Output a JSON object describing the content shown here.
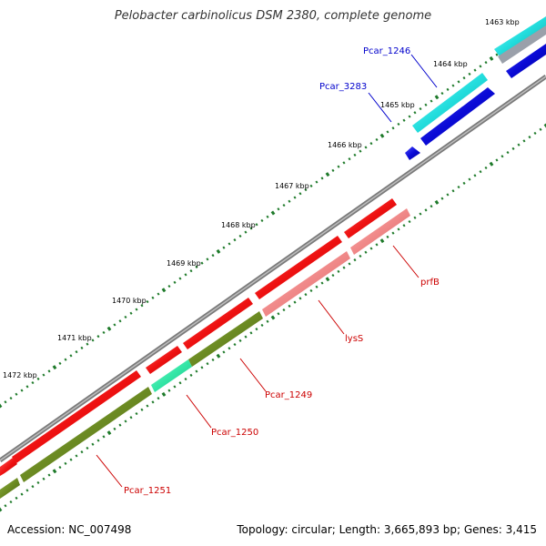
{
  "title": "Pelobacter carbinolicus DSM 2380, complete genome",
  "footer": {
    "accession": "Accession: NC_007498",
    "summary": "Topology: circular; Length: 3,665,893 bp; Genes: 3,415"
  },
  "colors": {
    "backbone": "#7a7a7a",
    "forward_red": "#ee1111",
    "reverse_pink": "#f08888",
    "reverse_olive": "#6b8a22",
    "reverse_teal": "#33e6a6",
    "cyan": "#22dddd",
    "blue": "#0a0ad6",
    "tick_green": "#1e7a2a",
    "label_red": "#cc0000",
    "label_blue": "#0000cc"
  },
  "ticks": [
    {
      "label": "1463 kbp"
    },
    {
      "label": "1464 kbp"
    },
    {
      "label": "1465 kbp"
    },
    {
      "label": "1466 kbp"
    },
    {
      "label": "1467 kbp"
    },
    {
      "label": "1468 kbp"
    },
    {
      "label": "1469 kbp"
    },
    {
      "label": "1470 kbp"
    },
    {
      "label": "1471 kbp"
    },
    {
      "label": "1472 kbp"
    }
  ],
  "gene_labels": {
    "pcar_1246": "Pcar_1246",
    "pcar_3283": "Pcar_3283",
    "prfB": "prfB",
    "lysS": "lysS",
    "pcar_1249": "Pcar_1249",
    "pcar_1250": "Pcar_1250",
    "pcar_1251": "Pcar_1251"
  }
}
